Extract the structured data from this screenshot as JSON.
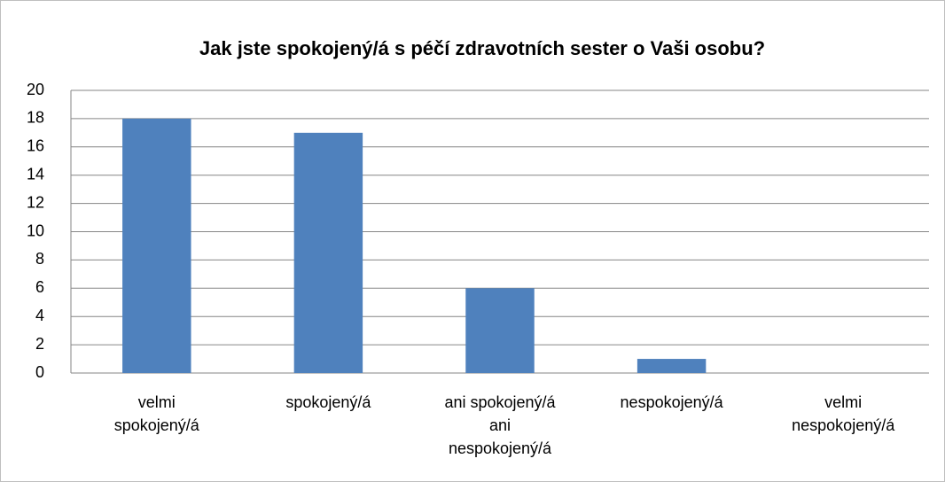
{
  "chart_data": {
    "type": "bar",
    "title": "Jak jste spokojený/á s péčí zdravotních sester o Vaši osobu?",
    "categories": [
      "velmi spokojený/á",
      "spokojený/á",
      "ani spokojený/á ani nespokojený/á",
      "nespokojený/á",
      "velmi nespokojený/á"
    ],
    "values": [
      18,
      17,
      6,
      1,
      0
    ],
    "color": "#4f81bd",
    "ylim": [
      0,
      20
    ],
    "yticks": [
      0,
      2,
      4,
      6,
      8,
      10,
      12,
      14,
      16,
      18,
      20
    ],
    "grid": true
  }
}
